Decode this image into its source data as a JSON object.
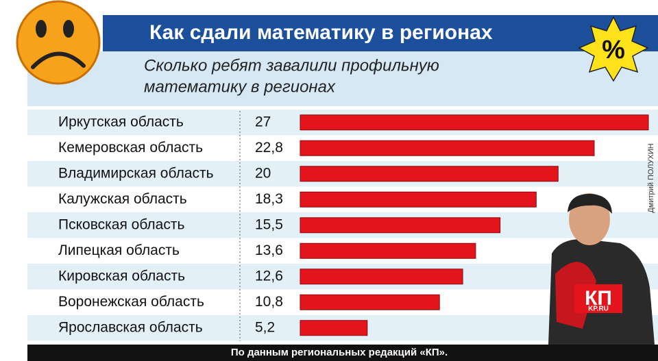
{
  "chart_data": {
    "type": "bar",
    "title": "Как сдали математику в регионах",
    "subtitle": [
      "Сколько ребят завалили профильную",
      "математику в регионах"
    ],
    "categories": [
      "Иркутская область",
      "Кемеровская область",
      "Владимирская область",
      "Калужская область",
      "Псковская область",
      "Липецкая область",
      "Кировская область",
      "Воронежская область",
      "Ярославская область"
    ],
    "values": [
      27,
      22.8,
      20,
      18.3,
      15.5,
      13.6,
      12.6,
      10.8,
      5.2
    ],
    "value_labels": [
      "27",
      "22,8",
      "20",
      "18,3",
      "15,5",
      "13,6",
      "12,6",
      "10,8",
      "5,2"
    ],
    "color": "#e3141c",
    "xlim": [
      0,
      27
    ],
    "badge": "%",
    "source": "По данным региональных редакций «КП».",
    "credit": "Дмитрий ПОЛУХИН",
    "logo": [
      "КП",
      "KP.RU"
    ]
  }
}
